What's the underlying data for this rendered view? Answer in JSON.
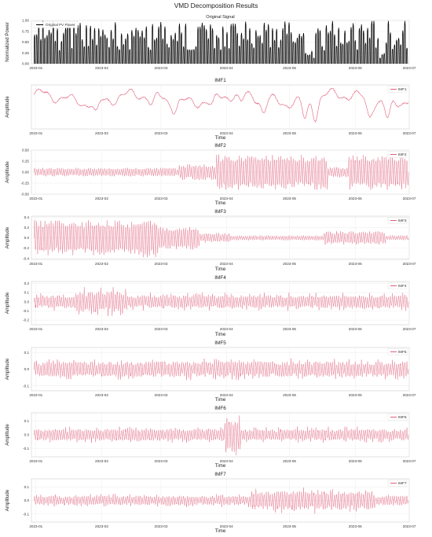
{
  "figure": {
    "title": "VMD Decomposition Results"
  },
  "chart_data": [
    {
      "type": "line",
      "title": "Original Signal",
      "xlabel": "",
      "ylabel": "Normalized Power",
      "x_ticks": [
        "2023-01",
        "2023-02",
        "2023-03",
        "2023-04",
        "2023-05",
        "2023-06",
        "2023-07"
      ],
      "ylim": [
        0.0,
        1.0
      ],
      "y_ticks": [
        "0.00",
        "0.25",
        "0.50",
        "0.75",
        "1.00"
      ],
      "y_tick_values": [
        0.0,
        0.25,
        0.5,
        0.75,
        1.0
      ],
      "series": [
        {
          "name": "Original PV Power",
          "color": "#000000",
          "pattern": "daily-pulses",
          "daily_peak_range": [
            0.3,
            1.0
          ]
        }
      ],
      "legend": "top-left",
      "grid": true
    },
    {
      "type": "line",
      "title": "IMF1",
      "xlabel": "Time",
      "ylabel": "Amplitude",
      "x_ticks": [
        "2023-01",
        "2023-02",
        "2023-03",
        "2023-04",
        "2023-05",
        "2023-06",
        "2023-07"
      ],
      "ylim": [
        0.0,
        0.65
      ],
      "y_ticks": [],
      "series": [
        {
          "name": "IMF1",
          "color": "#e0607a",
          "pattern": "trend",
          "value_range": [
            0.05,
            0.6
          ]
        }
      ],
      "legend": "top-right",
      "grid": true
    },
    {
      "type": "line",
      "title": "IMF2",
      "xlabel": "Time",
      "ylabel": "Amplitude",
      "x_ticks": [
        "2023-01",
        "2023-02",
        "2023-03",
        "2023-04",
        "2023-05",
        "2023-06",
        "2023-07"
      ],
      "ylim": [
        -0.5,
        0.5
      ],
      "y_ticks": [
        "-0.50",
        "-0.25",
        "0.00",
        "0.25",
        "0.50"
      ],
      "y_tick_values": [
        -0.5,
        -0.25,
        0.0,
        0.25,
        0.5
      ],
      "series": [
        {
          "name": "IMF2",
          "color": "#e0607a",
          "pattern": "oscillation",
          "amplitude_range": [
            0.05,
            0.4
          ]
        }
      ],
      "legend": "top-right",
      "grid": true
    },
    {
      "type": "line",
      "title": "IMF3",
      "xlabel": "Time",
      "ylabel": "Amplitude",
      "x_ticks": [
        "2023-01",
        "2023-02",
        "2023-03",
        "2023-04",
        "2023-05",
        "2023-06",
        "2023-07"
      ],
      "ylim": [
        -0.42,
        0.42
      ],
      "y_ticks": [
        "-0.4",
        "-0.2",
        "0.0",
        "0.2",
        "0.4"
      ],
      "y_tick_values": [
        -0.4,
        -0.2,
        0.0,
        0.2,
        0.4
      ],
      "series": [
        {
          "name": "IMF3",
          "color": "#e0607a",
          "pattern": "oscillation",
          "amplitude_range": [
            0.02,
            0.38
          ]
        }
      ],
      "legend": "top-right",
      "grid": true
    },
    {
      "type": "line",
      "title": "IMF4",
      "xlabel": "Time",
      "ylabel": "Amplitude",
      "x_ticks": [
        "2023-01",
        "2023-02",
        "2023-03",
        "2023-04",
        "2023-05",
        "2023-06",
        "2023-07"
      ],
      "ylim": [
        -0.25,
        0.22
      ],
      "y_ticks": [
        "-0.2",
        "-0.1",
        "0.0",
        "0.1",
        "0.2"
      ],
      "y_tick_values": [
        -0.2,
        -0.1,
        0.0,
        0.1,
        0.2
      ],
      "series": [
        {
          "name": "IMF4",
          "color": "#e0607a",
          "pattern": "oscillation",
          "amplitude_range": [
            0.02,
            0.18
          ]
        }
      ],
      "legend": "top-right",
      "grid": true
    },
    {
      "type": "line",
      "title": "IMF5",
      "xlabel": "Time",
      "ylabel": "Amplitude",
      "x_ticks": [
        "2023-01",
        "2023-02",
        "2023-03",
        "2023-04",
        "2023-05",
        "2023-06",
        "2023-07"
      ],
      "ylim": [
        -0.13,
        0.13
      ],
      "y_ticks": [
        "-0.1",
        "0.0",
        "0.1"
      ],
      "y_tick_values": [
        -0.1,
        0.0,
        0.1
      ],
      "series": [
        {
          "name": "IMF5",
          "color": "#e0607a",
          "pattern": "oscillation",
          "amplitude_range": [
            0.01,
            0.12
          ]
        }
      ],
      "legend": "top-right",
      "grid": true
    },
    {
      "type": "line",
      "title": "IMF6",
      "xlabel": "Time",
      "ylabel": "Amplitude",
      "x_ticks": [
        "2023-01",
        "2023-02",
        "2023-03",
        "2023-04",
        "2023-05",
        "2023-06",
        "2023-07"
      ],
      "ylim": [
        -0.16,
        0.16
      ],
      "y_ticks": [
        "-0.1",
        "0.0",
        "0.1"
      ],
      "y_tick_values": [
        -0.1,
        0.0,
        0.1
      ],
      "series": [
        {
          "name": "IMF6",
          "color": "#e0607a",
          "pattern": "oscillation",
          "amplitude_range": [
            0.01,
            0.15
          ]
        }
      ],
      "legend": "top-right",
      "grid": true
    },
    {
      "type": "line",
      "title": "IMF7",
      "xlabel": "Time",
      "ylabel": "Amplitude",
      "x_ticks": [
        "2023-01",
        "2023-02",
        "2023-03",
        "2023-04",
        "2023-05",
        "2023-06",
        "2023-07"
      ],
      "ylim": [
        -0.16,
        0.16
      ],
      "y_ticks": [
        "-0.1",
        "0.0",
        "0.1"
      ],
      "y_tick_values": [
        -0.1,
        0.0,
        0.1
      ],
      "series": [
        {
          "name": "IMF7",
          "color": "#e0607a",
          "pattern": "oscillation",
          "amplitude_range": [
            0.01,
            0.15
          ]
        }
      ],
      "legend": "top-right",
      "grid": true
    }
  ]
}
